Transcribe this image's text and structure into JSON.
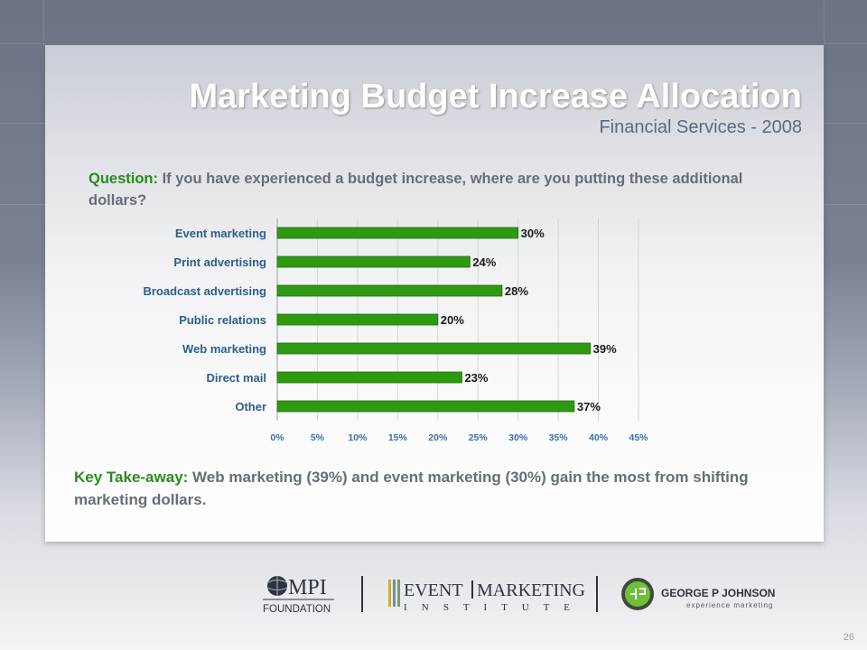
{
  "slide": {
    "title": "Marketing Budget Increase Allocation",
    "subtitle": "Financial Services - 2008",
    "question_label": "Question:",
    "question_text": "If you have experienced a budget increase, where are you putting these additional dollars?",
    "takeaway_label": "Key Take-away:",
    "takeaway_text": "Web marketing (39%) and event marketing (30%) gain the most from shifting marketing dollars.",
    "page_number": "26"
  },
  "logos": {
    "mpi_text": "MPI",
    "mpi_sub": "FOUNDATION",
    "emi_top_left": "EVENT",
    "emi_top_right": "MARKETING",
    "emi_bottom": "I N S T I T U T E",
    "gpj_name": "GEORGE P JOHNSON",
    "gpj_tagline": "experience marketing"
  },
  "colors": {
    "bar": "#2e9a12",
    "bar_edge": "#1f6e0a",
    "label_green": "#2a8a1e",
    "axis_text": "#3a6ea8"
  },
  "chart_data": {
    "type": "bar",
    "orientation": "horizontal",
    "categories": [
      "Event marketing",
      "Print advertising",
      "Broadcast advertising",
      "Public relations",
      "Web marketing",
      "Direct mail",
      "Other"
    ],
    "values": [
      30,
      24,
      28,
      20,
      39,
      23,
      37
    ],
    "data_labels": [
      "30%",
      "24%",
      "28%",
      "20%",
      "39%",
      "23%",
      "37%"
    ],
    "x_ticks": [
      "0%",
      "5%",
      "10%",
      "15%",
      "20%",
      "25%",
      "30%",
      "35%",
      "40%",
      "45%"
    ],
    "xlim": [
      0,
      45
    ],
    "grid": true,
    "legend": "none"
  }
}
